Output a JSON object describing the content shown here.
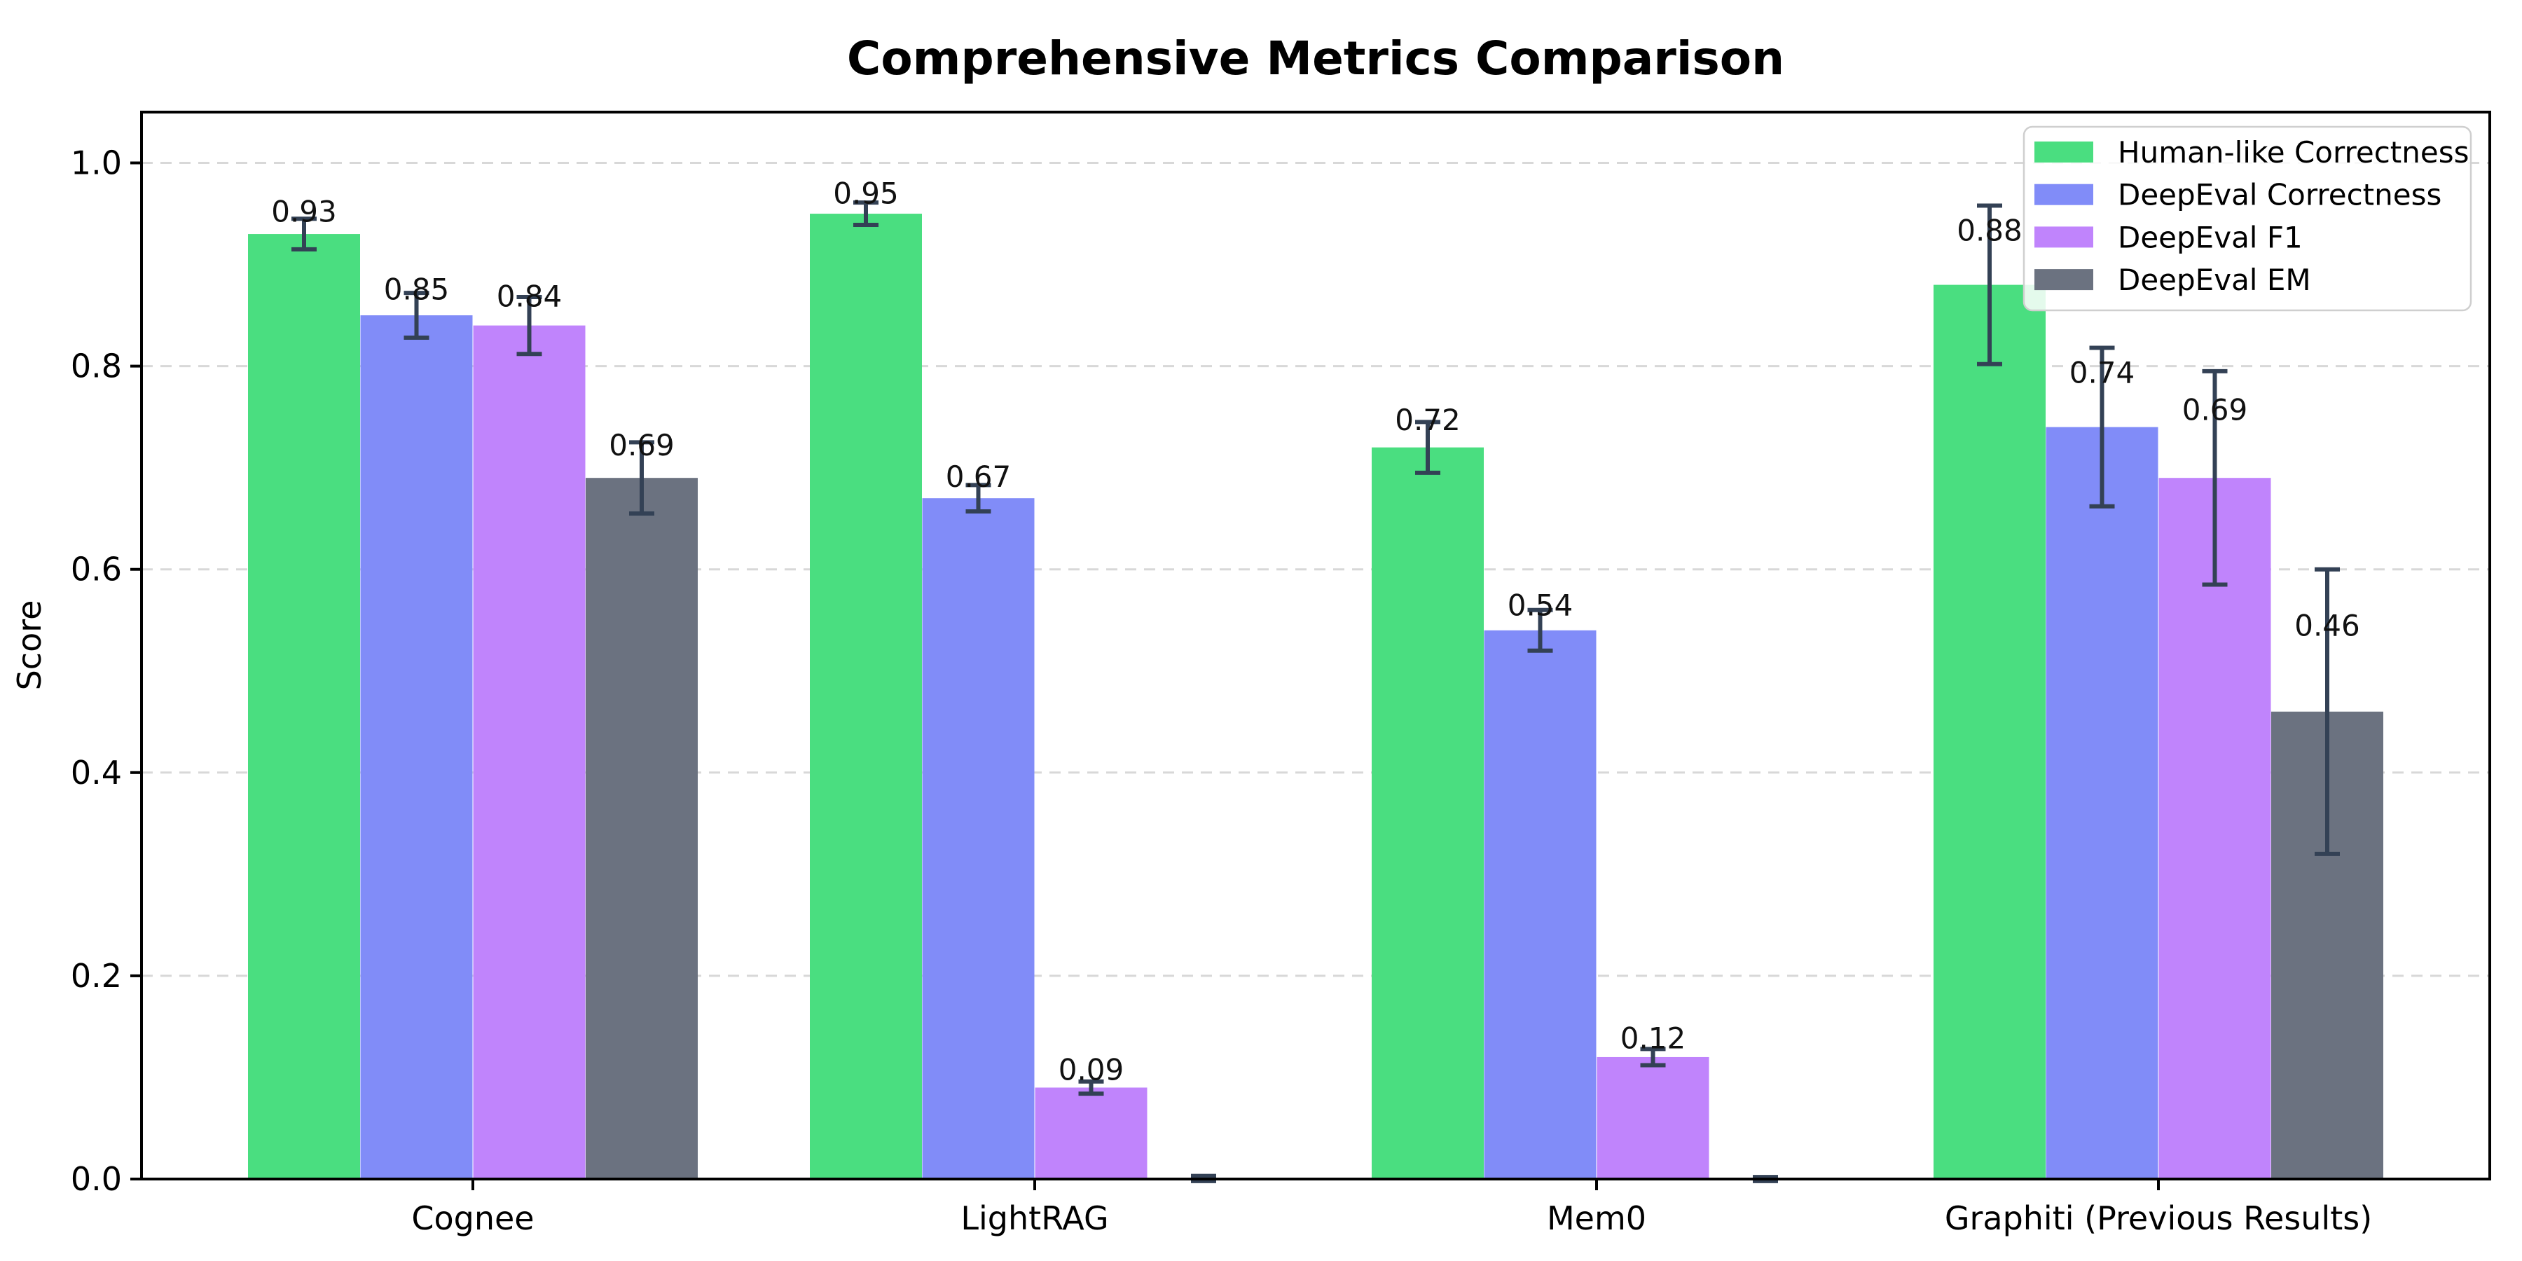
{
  "chart_data": {
    "type": "bar",
    "title": "Comprehensive Metrics Comparison",
    "xlabel": "",
    "ylabel": "Score",
    "categories": [
      "Cognee",
      "LightRAG",
      "Mem0",
      "Graphiti (Previous Results)"
    ],
    "series": [
      {
        "name": "Human-like Correctness",
        "color": "#4ade80",
        "values": [
          0.93,
          0.95,
          0.72,
          0.88
        ],
        "errors": [
          0.015,
          0.011,
          0.025,
          0.078
        ],
        "labels": [
          "0.93",
          "0.95",
          "0.72",
          "0.88"
        ]
      },
      {
        "name": "DeepEval Correctness",
        "color": "#818cf8",
        "values": [
          0.85,
          0.67,
          0.54,
          0.74
        ],
        "errors": [
          0.022,
          0.013,
          0.02,
          0.078
        ],
        "labels": [
          "0.85",
          "0.67",
          "0.54",
          "0.74"
        ]
      },
      {
        "name": "DeepEval F1",
        "color": "#c084fc",
        "values": [
          0.84,
          0.09,
          0.12,
          0.69
        ],
        "errors": [
          0.028,
          0.006,
          0.008,
          0.105
        ],
        "labels": [
          "0.84",
          "0.09",
          "0.12",
          "0.69"
        ]
      },
      {
        "name": "DeepEval EM",
        "color": "#6b7280",
        "values": [
          0.69,
          0.0,
          0.0,
          0.46
        ],
        "errors": [
          0.035,
          0.003,
          0.002,
          0.14
        ],
        "labels": [
          "0.69",
          "",
          "",
          "0.46"
        ]
      }
    ],
    "yticks": [
      "0.0",
      "0.2",
      "0.4",
      "0.6",
      "0.8",
      "1.0"
    ],
    "ylim": [
      0,
      1.05
    ],
    "grid": "horizontal-dashed",
    "gridline_color": "#d8d8d8",
    "axis_color": "#000000",
    "error_bar_color": "#334155",
    "legend_position": "upper right",
    "background_color": "#ffffff"
  }
}
